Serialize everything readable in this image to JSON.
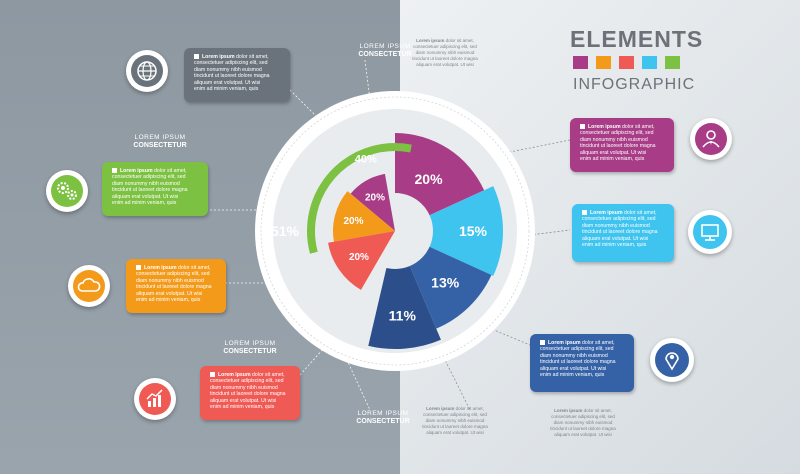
{
  "header": {
    "title": "ELEMENTS",
    "subtitle": "INFOGRAPHIC"
  },
  "colors": {
    "purple": "#a83c86",
    "orange": "#f39a1a",
    "cyan": "#3fc3ef",
    "blue": "#3562a6",
    "green": "#7cc142",
    "red": "#f05a55"
  },
  "callout_text": {
    "heading": "Lorem ipsum",
    "l1": "dolor sit amet,",
    "l2": "consectetuer adipiscing elit, sed",
    "l3": "diam nonummy nibh euismod",
    "l4": "tincidunt ut laoreet dolore magna",
    "l5": "aliquam erat volutpat. Ut wisi",
    "l6": "enim ad minim veniam, quis"
  },
  "labels": {
    "t": "LOREM IPSUM",
    "s": "CONSECTETUR"
  },
  "chart_data": {
    "type": "pie",
    "outer_ring": [
      {
        "label": "20%",
        "value": 20,
        "color": "#a83c86"
      },
      {
        "label": "15%",
        "value": 15,
        "color": "#3fc3ef"
      },
      {
        "label": "13%",
        "value": 13,
        "color": "#3562a6"
      },
      {
        "label": "11%",
        "value": 11,
        "color": "#2c4f8c"
      },
      {
        "label": "51%",
        "value": 51,
        "color": "#ffffff"
      }
    ],
    "inner_ring": [
      {
        "label": "40%",
        "value": 40,
        "color": "#7cc142"
      },
      {
        "label": "20%",
        "value": 20,
        "color": "#a83c86"
      },
      {
        "label": "20%",
        "value": 20,
        "color": "#f39a1a"
      },
      {
        "label": "20%",
        "value": 20,
        "color": "#f05a55"
      }
    ]
  },
  "icons": [
    "globe-icon",
    "gears-icon",
    "cloud-icon",
    "growth-chart-icon",
    "user-icon",
    "monitor-icon",
    "location-pin-icon"
  ]
}
